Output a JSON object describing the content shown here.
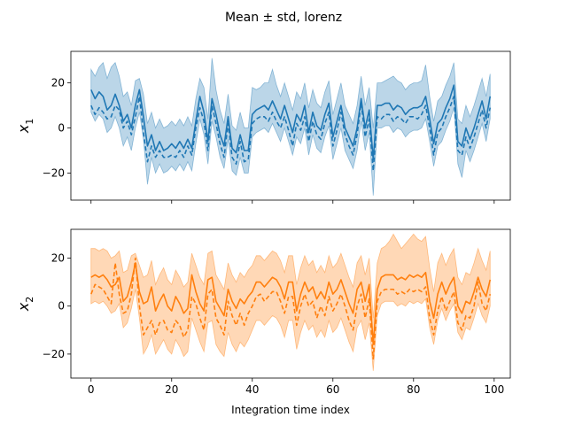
{
  "chart_data": [
    {
      "type": "line",
      "title": "Mean ± std, lorenz",
      "ylabel_var": "x",
      "ylabel_sub": "1",
      "xlabel": "",
      "xlim": [
        -5,
        104
      ],
      "ylim": [
        -32,
        34
      ],
      "xticks": [
        0,
        20,
        40,
        60,
        80,
        100
      ],
      "yticks": [
        -20,
        0,
        20
      ],
      "grid": false,
      "color": "#1f77b4",
      "band_opacity": 0.3,
      "x_start": 0,
      "x_step": 1,
      "series": [
        {
          "style": "solid",
          "values": [
            17.0,
            13.0,
            16.0,
            14.0,
            8.0,
            10.0,
            15.0,
            10.0,
            3.0,
            6.0,
            0.0,
            10.0,
            17.0,
            5.0,
            -8.0,
            -3.0,
            -10.0,
            -6.0,
            -10.0,
            -9.0,
            -7.0,
            -9.0,
            -6.0,
            -9.0,
            -5.0,
            -9.0,
            3.0,
            14.0,
            7.0,
            -6.0,
            13.0,
            6.0,
            -3.0,
            -8.0,
            5.0,
            -9.0,
            -11.0,
            -3.0,
            -10.0,
            -10.0,
            6.0,
            8.0,
            9.0,
            10.0,
            8.0,
            12.0,
            8.0,
            4.0,
            10.0,
            4.0,
            -2.0,
            6.0,
            3.0,
            10.0,
            -2.0,
            7.0,
            1.0,
            -1.0,
            6.0,
            11.0,
            -4.0,
            3.0,
            10.0,
            0.0,
            -4.0,
            -8.0,
            0.0,
            13.0,
            0.0,
            8.0,
            -14.0,
            10.0,
            10.0,
            11.0,
            11.0,
            8.0,
            10.0,
            9.0,
            6.0,
            8.0,
            9.0,
            9.0,
            10.0,
            14.0,
            4.0,
            -7.0,
            2.0,
            4.0,
            9.0,
            13.0,
            19.0,
            -6.0,
            -8.0,
            0.0,
            -5.0,
            0.0,
            6.0,
            12.0,
            4.0,
            14.0
          ]
        },
        {
          "style": "dashed",
          "values": [
            10.0,
            6.0,
            9.0,
            7.0,
            4.0,
            5.0,
            10.0,
            8.0,
            0.0,
            3.0,
            -3.0,
            5.0,
            14.0,
            -2.0,
            -15.0,
            -8.0,
            -13.0,
            -10.0,
            -13.0,
            -13.0,
            -12.0,
            -13.0,
            -10.0,
            -13.0,
            -8.0,
            -12.0,
            0.0,
            9.0,
            3.0,
            -10.0,
            10.0,
            2.0,
            -7.0,
            -13.0,
            2.0,
            -13.0,
            -16.0,
            -6.0,
            -15.0,
            -14.0,
            2.0,
            4.0,
            5.0,
            5.0,
            3.0,
            7.0,
            3.0,
            0.0,
            5.0,
            -1.0,
            -8.0,
            2.0,
            -1.0,
            5.0,
            -6.0,
            3.0,
            -3.0,
            -5.0,
            2.0,
            7.0,
            -8.0,
            -1.0,
            7.0,
            -3.0,
            -8.0,
            -12.0,
            -3.0,
            11.0,
            -4.0,
            4.0,
            -19.0,
            5.0,
            4.0,
            6.0,
            6.0,
            3.0,
            5.0,
            4.0,
            2.0,
            5.0,
            5.0,
            4.0,
            6.0,
            10.0,
            0.0,
            -12.0,
            -2.0,
            0.0,
            5.0,
            9.0,
            14.0,
            -10.0,
            -12.0,
            -4.0,
            -9.0,
            -4.0,
            2.0,
            8.0,
            0.0,
            9.0
          ]
        }
      ],
      "band_lower": [
        7.0,
        3.0,
        6.0,
        4.0,
        -2.0,
        0.0,
        5.0,
        0.0,
        -8.0,
        -4.0,
        -10.0,
        0.0,
        7.0,
        -5.0,
        -25.0,
        -13.0,
        -20.0,
        -16.0,
        -20.0,
        -19.0,
        -17.0,
        -19.0,
        -16.0,
        -19.0,
        -15.0,
        -19.0,
        -7.0,
        4.0,
        -3.0,
        -16.0,
        3.0,
        -4.0,
        -13.0,
        -18.0,
        -5.0,
        -19.0,
        -21.0,
        -13.0,
        -20.0,
        -20.0,
        -4.0,
        -2.0,
        -1.0,
        0.0,
        -2.0,
        2.0,
        -2.0,
        -6.0,
        0.0,
        -6.0,
        -12.0,
        -4.0,
        -7.0,
        0.0,
        -12.0,
        -3.0,
        -9.0,
        -11.0,
        -4.0,
        1.0,
        -14.0,
        -7.0,
        0.0,
        -10.0,
        -14.0,
        -18.0,
        -10.0,
        3.0,
        -10.0,
        -2.0,
        -30.0,
        0.0,
        0.0,
        1.0,
        1.0,
        -2.0,
        0.0,
        -1.0,
        -4.0,
        -2.0,
        -1.0,
        -1.0,
        0.0,
        4.0,
        -6.0,
        -17.0,
        -8.0,
        -6.0,
        -1.0,
        3.0,
        9.0,
        -16.0,
        -22.0,
        -10.0,
        -15.0,
        -10.0,
        -4.0,
        2.0,
        -6.0,
        4.0
      ],
      "band_upper": [
        26.0,
        23.0,
        27.0,
        29.0,
        22.0,
        27.0,
        29.0,
        23.0,
        14.0,
        16.0,
        10.0,
        21.0,
        22.0,
        15.0,
        2.0,
        7.0,
        0.0,
        4.0,
        0.0,
        1.0,
        3.0,
        1.0,
        4.0,
        1.0,
        5.0,
        1.0,
        13.0,
        22.0,
        18.0,
        4.0,
        31.0,
        17.0,
        8.0,
        2.0,
        15.0,
        1.0,
        -1.0,
        7.0,
        0.0,
        0.0,
        18.0,
        17.0,
        18.0,
        20.0,
        20.0,
        26.0,
        19.0,
        14.0,
        20.0,
        14.0,
        8.0,
        16.0,
        13.0,
        20.0,
        9.0,
        17.0,
        11.0,
        9.0,
        16.0,
        21.0,
        6.0,
        13.0,
        20.0,
        10.0,
        6.0,
        2.0,
        10.0,
        23.0,
        10.0,
        18.0,
        0.0,
        20.0,
        20.0,
        21.0,
        22.0,
        23.0,
        21.0,
        20.0,
        17.0,
        19.0,
        20.0,
        20.0,
        21.0,
        28.0,
        14.0,
        3.0,
        12.0,
        14.0,
        19.0,
        23.0,
        29.0,
        4.0,
        2.0,
        10.0,
        5.0,
        10.0,
        16.0,
        22.0,
        14.0,
        24.0
      ]
    },
    {
      "type": "line",
      "title": "",
      "ylabel_var": "x",
      "ylabel_sub": "2",
      "xlabel": "Integration time index",
      "xlim": [
        -5,
        104
      ],
      "ylim": [
        -30,
        32
      ],
      "xticks": [
        0,
        20,
        40,
        60,
        80,
        100
      ],
      "yticks": [
        -20,
        0,
        20
      ],
      "grid": false,
      "color": "#ff7f0e",
      "band_opacity": 0.3,
      "x_start": 0,
      "x_step": 1,
      "series": [
        {
          "style": "solid",
          "values": [
            12.0,
            13.0,
            12.0,
            13.0,
            11.0,
            8.0,
            9.0,
            12.0,
            2.0,
            4.0,
            10.0,
            18.0,
            6.0,
            1.0,
            2.0,
            8.0,
            -2.0,
            2.0,
            5.0,
            0.0,
            -2.0,
            4.0,
            1.0,
            -3.0,
            -1.0,
            13.0,
            6.0,
            1.0,
            -2.0,
            11.0,
            12.0,
            2.0,
            -1.0,
            -4.0,
            7.0,
            2.0,
            -1.0,
            3.0,
            1.0,
            4.0,
            6.0,
            10.0,
            10.0,
            8.0,
            10.0,
            12.0,
            11.0,
            8.0,
            3.0,
            10.0,
            10.0,
            -2.0,
            5.0,
            10.0,
            6.0,
            8.0,
            3.0,
            6.0,
            3.0,
            10.0,
            5.0,
            7.0,
            11.0,
            6.0,
            1.0,
            -3.0,
            7.0,
            10.0,
            2.0,
            9.0,
            -16.0,
            7.0,
            12.0,
            13.0,
            13.0,
            13.0,
            11.0,
            12.0,
            11.0,
            13.0,
            12.0,
            13.0,
            12.0,
            14.0,
            2.0,
            -5.0,
            5.0,
            10.0,
            5.0,
            9.0,
            12.0,
            0.0,
            -3.0,
            2.0,
            1.0,
            6.0,
            12.0,
            7.0,
            4.0,
            11.0
          ]
        },
        {
          "style": "dashed",
          "values": [
            5.0,
            9.0,
            8.0,
            7.0,
            4.0,
            1.0,
            18.0,
            5.0,
            -3.0,
            -2.0,
            5.0,
            20.0,
            0.0,
            -12.0,
            -9.0,
            -6.0,
            -12.0,
            -7.0,
            -6.0,
            -10.0,
            -11.0,
            -6.0,
            -8.0,
            -13.0,
            -10.0,
            4.0,
            1.0,
            -5.0,
            -10.0,
            5.0,
            7.0,
            -5.0,
            -8.0,
            -12.0,
            2.0,
            -4.0,
            -8.0,
            -3.0,
            -8.0,
            -3.0,
            0.0,
            4.0,
            5.0,
            2.0,
            4.0,
            6.0,
            6.0,
            2.0,
            -3.0,
            4.0,
            4.0,
            -8.0,
            0.0,
            5.0,
            0.0,
            2.0,
            -5.0,
            0.0,
            -4.0,
            4.0,
            -2.0,
            1.0,
            5.0,
            0.0,
            -6.0,
            -10.0,
            0.0,
            5.0,
            -5.0,
            3.0,
            -22.0,
            2.0,
            6.0,
            7.0,
            7.0,
            7.0,
            5.0,
            6.0,
            5.0,
            7.0,
            6.0,
            7.0,
            6.0,
            8.0,
            -5.0,
            -12.0,
            -2.0,
            4.0,
            -2.0,
            2.0,
            6.0,
            -7.0,
            -10.0,
            -4.0,
            -5.0,
            0.0,
            10.0,
            1.0,
            -2.0,
            5.0
          ]
        }
      ],
      "band_lower": [
        1.0,
        2.0,
        1.0,
        2.0,
        0.0,
        -3.0,
        -2.0,
        1.0,
        -9.0,
        -7.0,
        -1.0,
        7.0,
        -5.0,
        -20.0,
        -17.0,
        -12.0,
        -20.0,
        -17.0,
        -14.0,
        -18.0,
        -20.0,
        -14.0,
        -17.0,
        -21.0,
        -19.0,
        -5.0,
        -10.0,
        -15.0,
        -19.0,
        -7.0,
        -6.0,
        -16.0,
        -19.0,
        -21.0,
        -11.0,
        -16.0,
        -19.0,
        -15.0,
        -17.0,
        -14.0,
        -10.0,
        -6.0,
        -6.0,
        -8.0,
        -6.0,
        -4.0,
        -5.0,
        -8.0,
        -13.0,
        -6.0,
        -6.0,
        -18.0,
        -11.0,
        -6.0,
        -10.0,
        -8.0,
        -13.0,
        -10.0,
        -13.0,
        -6.0,
        -11.0,
        -9.0,
        -5.0,
        -10.0,
        -15.0,
        -19.0,
        -9.0,
        -6.0,
        -14.0,
        -7.0,
        -27.0,
        -4.0,
        1.0,
        2.0,
        2.0,
        2.0,
        0.0,
        1.0,
        0.0,
        2.0,
        1.0,
        2.0,
        1.0,
        3.0,
        -9.0,
        -16.0,
        -6.0,
        -1.0,
        -6.0,
        -2.0,
        1.0,
        -11.0,
        -14.0,
        -9.0,
        -10.0,
        -5.0,
        1.0,
        -4.0,
        -7.0,
        0.0
      ],
      "band_upper": [
        24.0,
        24.0,
        23.0,
        24.0,
        23.0,
        20.0,
        21.0,
        23.0,
        14.0,
        15.0,
        21.0,
        22.0,
        17.0,
        12.0,
        13.0,
        19.0,
        9.0,
        13.0,
        16.0,
        11.0,
        9.0,
        15.0,
        12.0,
        8.0,
        10.0,
        22.0,
        17.0,
        12.0,
        9.0,
        22.0,
        23.0,
        13.0,
        10.0,
        7.0,
        18.0,
        13.0,
        10.0,
        14.0,
        12.0,
        15.0,
        17.0,
        21.0,
        21.0,
        19.0,
        21.0,
        23.0,
        22.0,
        19.0,
        14.0,
        21.0,
        21.0,
        9.0,
        16.0,
        21.0,
        17.0,
        19.0,
        14.0,
        17.0,
        14.0,
        21.0,
        16.0,
        18.0,
        22.0,
        17.0,
        12.0,
        8.0,
        18.0,
        21.0,
        13.0,
        20.0,
        -5.0,
        18.0,
        24.0,
        25.0,
        27.0,
        30.0,
        27.0,
        24.0,
        26.0,
        28.0,
        30.0,
        28.0,
        27.0,
        29.0,
        16.0,
        6.0,
        18.0,
        22.0,
        17.0,
        21.0,
        24.0,
        12.0,
        9.0,
        14.0,
        13.0,
        18.0,
        24.0,
        19.0,
        15.0,
        23.0
      ]
    }
  ]
}
